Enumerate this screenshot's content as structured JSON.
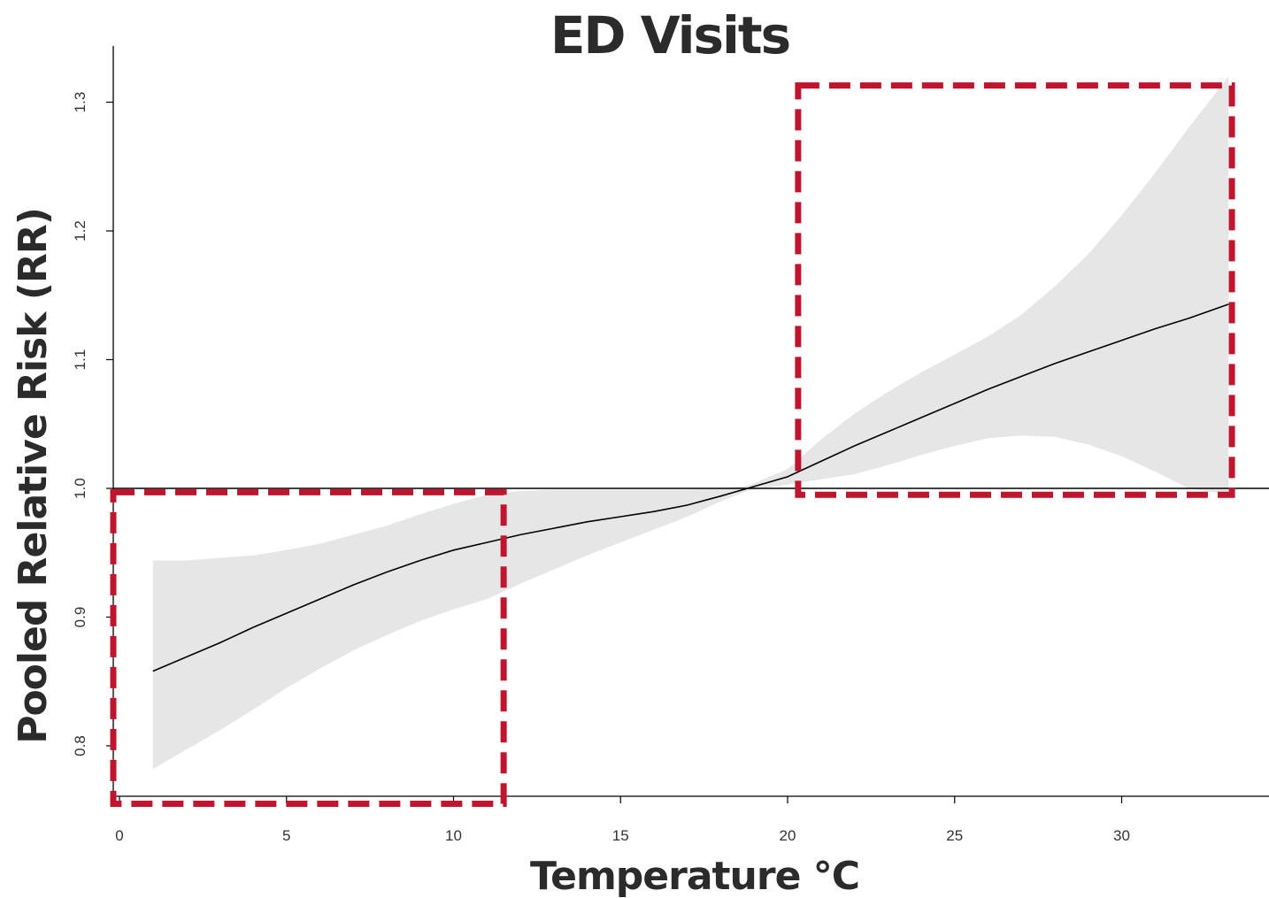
{
  "chart_data": {
    "type": "line",
    "title": "ED Visits",
    "xlabel": "Temperature °C",
    "ylabel": "Pooled Relative Risk (RR)",
    "xlim": [
      0,
      34
    ],
    "ylim": [
      0.76,
      1.35
    ],
    "x_ticks": [
      0,
      5,
      10,
      15,
      20,
      25,
      30
    ],
    "y_ticks": [
      0.8,
      0.9,
      1.0,
      1.1,
      1.2,
      1.3
    ],
    "reference_line": 1.0,
    "series": [
      {
        "x": [
          1,
          2,
          3,
          4,
          5,
          6,
          7,
          8,
          9,
          10,
          11,
          12,
          13,
          14,
          15,
          16,
          17,
          18,
          18.8,
          20,
          21,
          22,
          23,
          24,
          25,
          26,
          27,
          28,
          29,
          30,
          31,
          32,
          33.2
        ],
        "values": [
          0.858,
          0.869,
          0.88,
          0.892,
          0.903,
          0.914,
          0.925,
          0.935,
          0.944,
          0.952,
          0.958,
          0.964,
          0.969,
          0.974,
          0.978,
          0.982,
          0.987,
          0.994,
          1.0,
          1.009,
          1.021,
          1.033,
          1.044,
          1.055,
          1.066,
          1.077,
          1.087,
          1.097,
          1.106,
          1.115,
          1.124,
          1.132,
          1.143
        ],
        "lower": [
          0.782,
          0.797,
          0.812,
          0.828,
          0.845,
          0.86,
          0.874,
          0.886,
          0.897,
          0.906,
          0.914,
          0.926,
          0.937,
          0.948,
          0.958,
          0.968,
          0.978,
          0.99,
          0.998,
          1.003,
          1.007,
          1.011,
          1.018,
          1.026,
          1.033,
          1.039,
          1.041,
          1.04,
          1.034,
          1.025,
          1.013,
          1.0,
          0.995
        ],
        "upper": [
          0.944,
          0.944,
          0.946,
          0.948,
          0.952,
          0.957,
          0.964,
          0.971,
          0.98,
          0.988,
          0.995,
          0.998,
          0.999,
          0.999,
          0.999,
          0.999,
          0.999,
          1.0,
          1.002,
          1.015,
          1.038,
          1.058,
          1.075,
          1.09,
          1.104,
          1.118,
          1.135,
          1.157,
          1.182,
          1.212,
          1.245,
          1.28,
          1.32
        ]
      }
    ],
    "highlight_boxes": [
      {
        "x": [
          0,
          11.5
        ],
        "y": [
          0.755,
          0.997
        ]
      },
      {
        "x": [
          20.5,
          33.3
        ],
        "y": [
          0.995,
          1.313
        ]
      }
    ],
    "colors": {
      "line": "#000000",
      "ci_band": "#e6e6e6",
      "highlight": "#c0152f",
      "text": "#2b2b2b"
    }
  }
}
